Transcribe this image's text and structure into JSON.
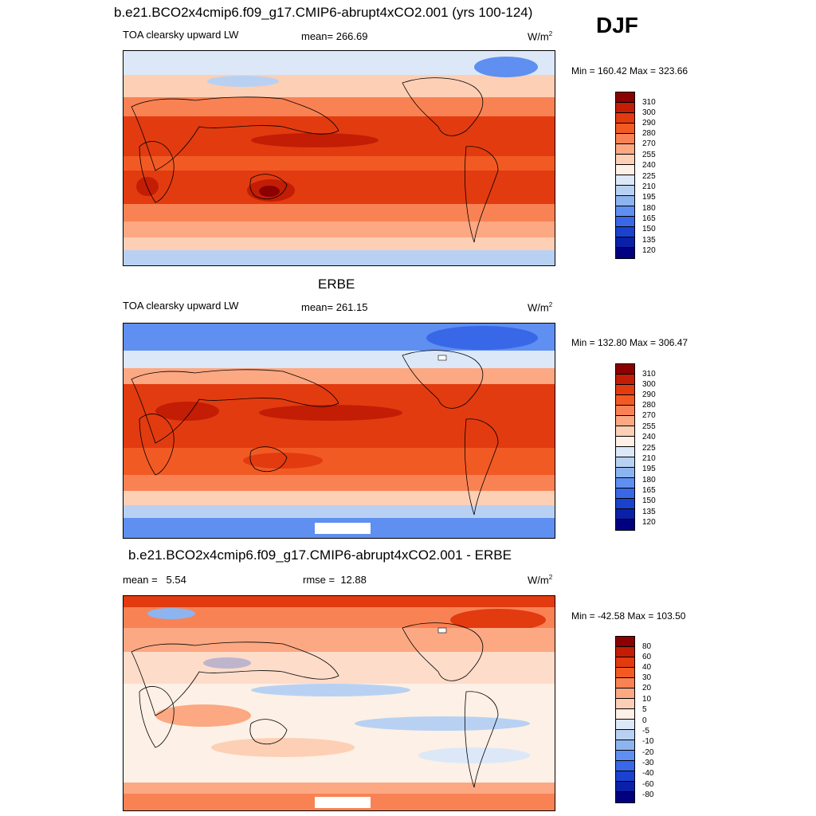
{
  "panel1": {
    "title": "b.e21.BCO2x4cmip6.f09_g17.CMIP6-abrupt4xCO2.001 (yrs 100-124)",
    "left": "TOA clearsky upward LW",
    "center": "mean= 266.69",
    "units": "W/m",
    "units_sup": "2",
    "minmax": "Min = 160.42 Max = 323.66"
  },
  "season": "DJF",
  "panel2": {
    "title": "ERBE",
    "left": "TOA clearsky upward LW",
    "center": "mean= 261.15",
    "units": "W/m",
    "units_sup": "2",
    "minmax": "Min = 132.80 Max = 306.47"
  },
  "panel3": {
    "title": "b.e21.BCO2x4cmip6.f09_g17.CMIP6-abrupt4xCO2.001 - ERBE",
    "left": "mean =   5.54",
    "center": "rmse =  12.88",
    "units": "W/m",
    "units_sup": "2",
    "minmax": "Min = -42.58 Max = 103.50"
  },
  "chart_data": [
    {
      "type": "heatmap",
      "title": "b.e21.BCO2x4cmip6.f09_g17.CMIP6-abrupt4xCO2.001 (yrs 100-124)",
      "variable": "TOA clearsky upward LW",
      "season": "DJF",
      "mean": 266.69,
      "min": 160.42,
      "max": 323.66,
      "units": "W/m2",
      "colorbar_levels": [
        "310",
        "300",
        "290",
        "280",
        "270",
        "255",
        "240",
        "225",
        "210",
        "195",
        "180",
        "165",
        "150",
        "135",
        "120"
      ],
      "colorbar_colors": [
        "#8b0000",
        "#c31d05",
        "#e23b10",
        "#f25a24",
        "#f98254",
        "#fca883",
        "#fdcfb5",
        "#fdf0e6",
        "#dce8f8",
        "#b8d1f3",
        "#8db4ef",
        "#5f8ff0",
        "#3868e8",
        "#1a42cf",
        "#0b20a8",
        "#000080"
      ]
    },
    {
      "type": "heatmap",
      "title": "ERBE",
      "variable": "TOA clearsky upward LW",
      "mean": 261.15,
      "min": 132.8,
      "max": 306.47,
      "units": "W/m2",
      "colorbar_levels": [
        "310",
        "300",
        "290",
        "280",
        "270",
        "255",
        "240",
        "225",
        "210",
        "195",
        "180",
        "165",
        "150",
        "135",
        "120"
      ],
      "colorbar_colors": [
        "#8b0000",
        "#c31d05",
        "#e23b10",
        "#f25a24",
        "#f98254",
        "#fca883",
        "#fdcfb5",
        "#fdf0e6",
        "#dce8f8",
        "#b8d1f3",
        "#8db4ef",
        "#5f8ff0",
        "#3868e8",
        "#1a42cf",
        "#0b20a8",
        "#000080"
      ]
    },
    {
      "type": "heatmap",
      "title": "b.e21.BCO2x4cmip6.f09_g17.CMIP6-abrupt4xCO2.001 - ERBE",
      "mean": 5.54,
      "rmse": 12.88,
      "min": -42.58,
      "max": 103.5,
      "units": "W/m2",
      "colorbar_levels": [
        "80",
        "60",
        "40",
        "30",
        "20",
        "10",
        "5",
        "0",
        "-5",
        "-10",
        "-20",
        "-30",
        "-40",
        "-60",
        "-80"
      ],
      "colorbar_colors": [
        "#8b0000",
        "#c31d05",
        "#e23b10",
        "#f25a24",
        "#f98254",
        "#fca883",
        "#fdcfb5",
        "#fdf0e6",
        "#dce8f8",
        "#b8d1f3",
        "#8db4ef",
        "#5f8ff0",
        "#3868e8",
        "#1a42cf",
        "#0b20a8",
        "#000080"
      ]
    }
  ]
}
